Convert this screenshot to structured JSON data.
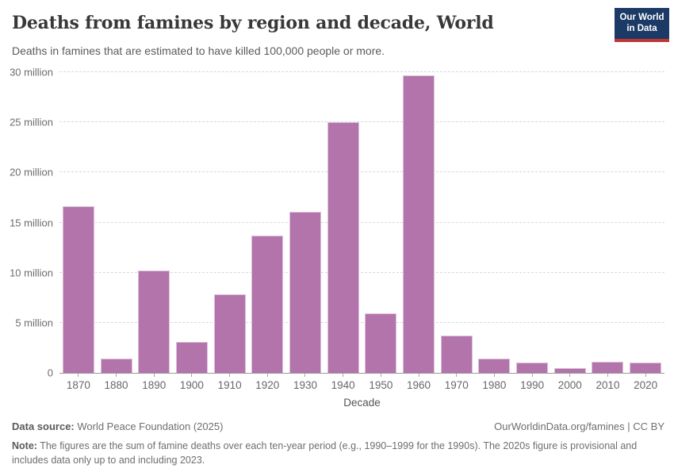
{
  "header": {
    "title": "Deaths from famines by region and decade, World",
    "subtitle": "Deaths in famines that are estimated to have killed 100,000 people or more.",
    "logo_line1": "Our World",
    "logo_line2": "in Data"
  },
  "chart_data": {
    "type": "bar",
    "title": "Deaths from famines by region and decade, World",
    "categories": [
      "1870",
      "1880",
      "1890",
      "1900",
      "1910",
      "1920",
      "1930",
      "1940",
      "1950",
      "1960",
      "1970",
      "1980",
      "1990",
      "2000",
      "2010",
      "2020"
    ],
    "values": [
      16.6,
      1.4,
      10.2,
      3.1,
      7.8,
      13.7,
      16.1,
      25.0,
      5.9,
      29.7,
      3.7,
      1.4,
      1.0,
      0.5,
      1.1,
      1.0
    ],
    "unit": "million deaths",
    "xlabel": "Decade",
    "ylabel": "",
    "ylim": [
      0,
      30
    ],
    "yticks": [
      {
        "value": 0,
        "label": "0"
      },
      {
        "value": 5,
        "label": "5 million"
      },
      {
        "value": 10,
        "label": "10 million"
      },
      {
        "value": 15,
        "label": "15 million"
      },
      {
        "value": 20,
        "label": "20 million"
      },
      {
        "value": 25,
        "label": "25 million"
      },
      {
        "value": 30,
        "label": "30 million"
      }
    ],
    "grid": true,
    "legend_position": "none",
    "bar_color": "#b274ab"
  },
  "footer": {
    "datasource_label": "Data source:",
    "datasource_value": " World Peace Foundation (2025)",
    "link": "OurWorldinData.org/famines | CC BY",
    "note_label": "Note:",
    "note_value": " The figures are the sum of famine deaths over each ten-year period (e.g., 1990–1999 for the 1990s). The 2020s figure is provisional and includes data only up to and including 2023."
  },
  "colors": {
    "bar": "#b274ab",
    "logo_bg": "#1b3a66",
    "logo_red": "#bf3734",
    "gridline": "#d9d9d9",
    "axis_line": "#9b9b9b",
    "text_dark": "#383838",
    "text_gray": "#6e6e6e"
  }
}
